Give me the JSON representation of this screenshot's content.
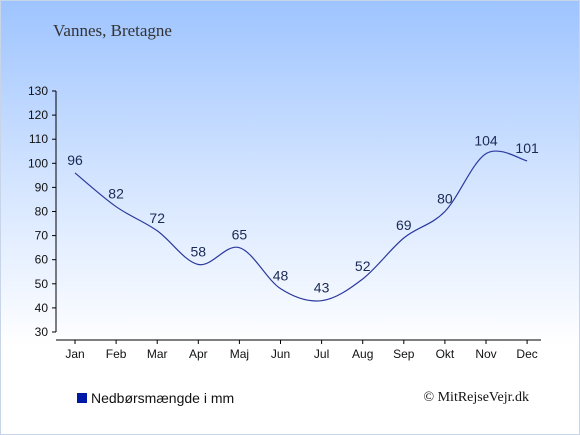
{
  "title": "Vannes, Bretagne",
  "legend_label": "Nedbørsmængde i mm",
  "copyright": "© MitRejseVejr.dk",
  "colors": {
    "line": "#2b3a9c",
    "legend_swatch": "#0018a8",
    "axis": "#000000"
  },
  "chart_data": {
    "type": "line",
    "title": "Vannes, Bretagne",
    "categories": [
      "Jan",
      "Feb",
      "Mar",
      "Apr",
      "Maj",
      "Jun",
      "Jul",
      "Aug",
      "Sep",
      "Okt",
      "Nov",
      "Dec"
    ],
    "series": [
      {
        "name": "Nedbørsmængde i mm",
        "values": [
          96,
          82,
          72,
          58,
          65,
          48,
          43,
          52,
          69,
          80,
          104,
          101
        ]
      }
    ],
    "ylim": [
      30,
      130
    ],
    "yticks": [
      30,
      40,
      50,
      60,
      70,
      80,
      90,
      100,
      110,
      120,
      130
    ],
    "xlabel": "",
    "ylabel": "",
    "grid": false,
    "legend_position": "bottom-left"
  }
}
